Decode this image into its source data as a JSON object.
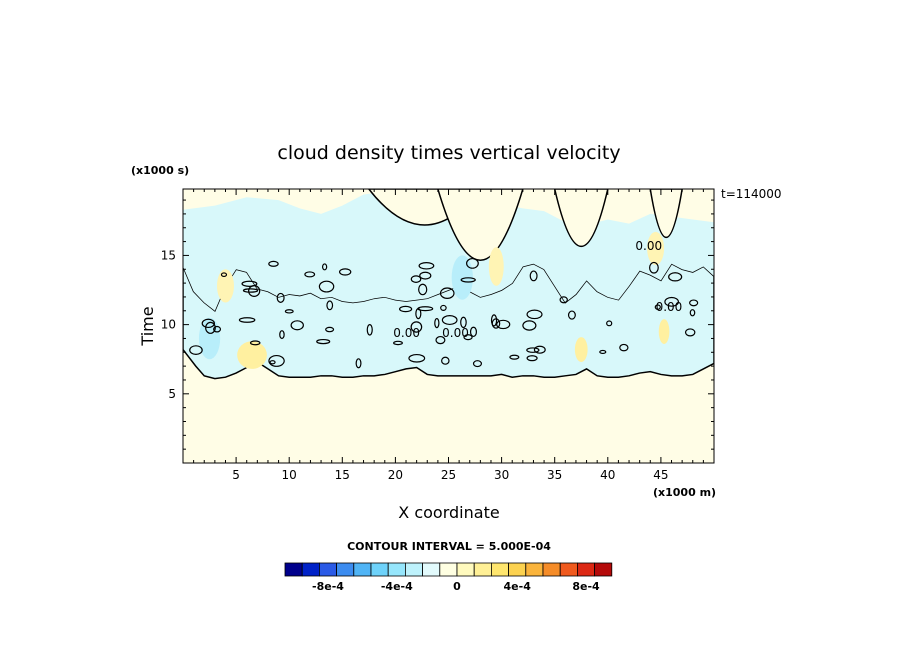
{
  "chart_data": {
    "type": "heatmap",
    "title": "cloud density times vertical velocity",
    "xlabel": "X coordinate",
    "ylabel": "Time",
    "x_unit": "(x1000 m)",
    "y_unit": "(x1000 s)",
    "time_stamp": "t=114000",
    "xlim": [
      0,
      50
    ],
    "ylim": [
      0,
      19.8
    ],
    "x_ticks": [
      5,
      10,
      15,
      20,
      25,
      30,
      35,
      40,
      45
    ],
    "y_ticks": [
      5,
      10,
      15
    ],
    "contour_interval_text": "CONTOUR INTERVAL = 5.000E-04",
    "contour_label": "0.00",
    "cloud_base_profile": {
      "x": [
        0,
        1.2,
        2,
        3,
        4,
        5,
        6,
        7,
        8,
        9,
        10,
        11,
        12,
        13,
        14,
        15,
        16,
        17,
        18,
        19,
        20,
        21,
        22,
        23,
        24,
        25,
        26,
        27,
        28,
        29,
        30,
        31,
        32,
        33,
        34,
        35,
        36,
        37,
        38,
        39,
        40,
        41,
        42,
        43,
        44,
        45,
        46,
        47,
        48,
        49,
        50
      ],
      "y": [
        8.2,
        7.0,
        6.3,
        6.1,
        6.2,
        6.5,
        6.9,
        7.3,
        6.8,
        6.3,
        6.2,
        6.2,
        6.2,
        6.3,
        6.3,
        6.2,
        6.2,
        6.3,
        6.3,
        6.4,
        6.6,
        6.8,
        6.9,
        6.4,
        6.3,
        6.3,
        6.3,
        6.3,
        6.3,
        6.3,
        6.4,
        6.2,
        6.3,
        6.3,
        6.2,
        6.2,
        6.3,
        6.4,
        6.8,
        6.3,
        6.2,
        6.2,
        6.3,
        6.5,
        6.6,
        6.4,
        6.3,
        6.3,
        6.4,
        6.8,
        7.2
      ]
    },
    "cloud_top_profile": {
      "x": [
        0,
        1,
        2,
        3,
        4,
        5,
        6,
        7,
        8,
        9,
        10,
        11,
        12,
        13,
        14,
        15,
        16,
        17,
        18,
        19,
        20,
        21,
        22,
        23,
        24,
        25,
        26,
        27,
        28,
        29,
        30,
        31,
        32,
        33,
        34,
        35,
        36,
        37,
        38,
        39,
        40,
        41,
        42,
        43,
        44,
        45,
        46,
        47,
        48,
        49,
        50
      ],
      "y": [
        14.2,
        12.4,
        11.6,
        11.0,
        12.8,
        14.0,
        13.8,
        12.6,
        12.4,
        12.0,
        12.2,
        12.1,
        12.3,
        11.9,
        12.0,
        11.7,
        11.6,
        11.7,
        11.9,
        12.0,
        11.8,
        11.7,
        11.8,
        11.9,
        12.2,
        12.5,
        12.8,
        12.4,
        12.0,
        12.2,
        12.5,
        13.0,
        14.2,
        14.4,
        14.0,
        12.8,
        11.6,
        12.2,
        13.2,
        12.4,
        12.0,
        11.8,
        12.8,
        13.9,
        13.6,
        13.2,
        14.4,
        14.0,
        13.8,
        14.2,
        13.5
      ]
    },
    "upper_region_x": [
      0,
      3,
      6,
      9,
      11,
      13,
      15,
      17,
      19,
      20,
      22,
      24,
      26,
      28,
      30,
      32,
      34,
      36,
      38,
      40,
      42,
      44,
      46,
      48,
      50
    ],
    "upper_region_y": [
      18.3,
      18.6,
      19.2,
      19.0,
      18.4,
      18.0,
      18.6,
      19.4,
      19.6,
      19.7,
      19.6,
      19.2,
      18.8,
      18.6,
      18.7,
      18.4,
      18.2,
      17.4,
      17.2,
      17.6,
      17.3,
      18.0,
      17.8,
      17.6,
      17.4
    ],
    "colorbar": {
      "colors": [
        "#00008c",
        "#0022c8",
        "#2a5ae6",
        "#3c8cf0",
        "#50b4f5",
        "#6ed2fa",
        "#96e6fc",
        "#bef2fc",
        "#e2fafc",
        "#ffffe2",
        "#fffabe",
        "#fff096",
        "#ffe66e",
        "#fcd250",
        "#fab43c",
        "#f58c28",
        "#f05a1e",
        "#dc2814",
        "#b40a0a"
      ],
      "tick_labels": [
        "-8e-4",
        "-4e-4",
        "0",
        "4e-4",
        "8e-4"
      ],
      "tick_positions": [
        2.5,
        6.5,
        10,
        13.5,
        17.5
      ]
    }
  }
}
